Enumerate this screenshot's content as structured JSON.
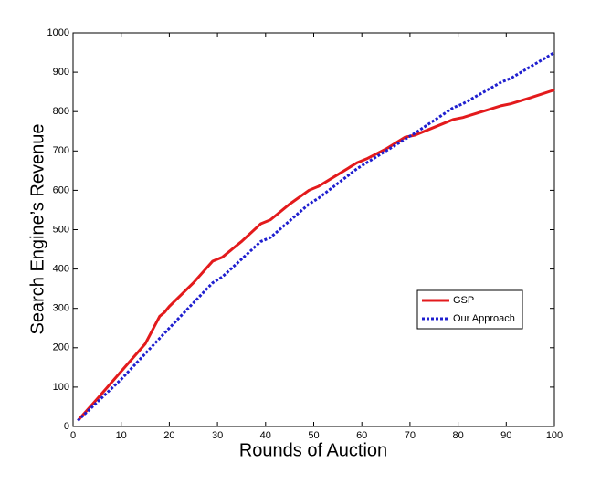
{
  "chart_data": {
    "type": "line",
    "xlabel": "Rounds of Auction",
    "ylabel": "Search Engine’s Revenue",
    "series": [
      {
        "name": "GSP",
        "color": "#e31a1c",
        "dash": "solid",
        "x": [
          1,
          5,
          10,
          15,
          18,
          19,
          20,
          25,
          29,
          31,
          35,
          39,
          41,
          45,
          49,
          51,
          55,
          59,
          61,
          65,
          69,
          71,
          75,
          79,
          81,
          85,
          89,
          91,
          95,
          100
        ],
        "values": [
          15,
          70,
          140,
          210,
          280,
          290,
          305,
          365,
          420,
          430,
          470,
          515,
          525,
          565,
          600,
          610,
          640,
          670,
          680,
          705,
          735,
          740,
          760,
          780,
          785,
          800,
          815,
          820,
          835,
          855
        ]
      },
      {
        "name": "Our Approach",
        "color": "#1f1fcf",
        "dash": "dotted",
        "x": [
          1,
          10,
          20,
          29,
          31,
          39,
          41,
          49,
          51,
          59,
          61,
          69,
          71,
          79,
          81,
          89,
          91,
          100
        ],
        "values": [
          15,
          120,
          250,
          365,
          380,
          470,
          480,
          565,
          580,
          655,
          670,
          730,
          745,
          810,
          820,
          875,
          885,
          950
        ]
      }
    ],
    "xlim": [
      0,
      100
    ],
    "xticks": [
      0,
      10,
      20,
      30,
      40,
      50,
      60,
      70,
      80,
      90,
      100
    ],
    "ylim": [
      0,
      1000
    ],
    "yticks": [
      0,
      100,
      200,
      300,
      400,
      500,
      600,
      700,
      800,
      900,
      1000
    ],
    "grid": false,
    "legend": "lower right"
  }
}
